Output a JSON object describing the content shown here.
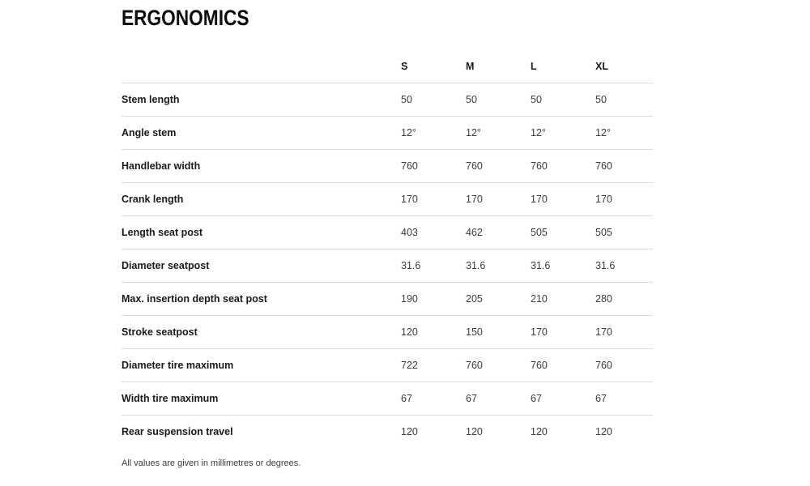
{
  "page": {
    "title": "ERGONOMICS",
    "footnote": "All values are given in millimetres or degrees."
  },
  "table": {
    "columns": [
      "S",
      "M",
      "L",
      "XL"
    ],
    "rows": [
      {
        "label": "Stem length",
        "values": [
          "50",
          "50",
          "50",
          "50"
        ]
      },
      {
        "label": "Angle stem",
        "values": [
          "12°",
          "12°",
          "12°",
          "12°"
        ]
      },
      {
        "label": "Handlebar width",
        "values": [
          "760",
          "760",
          "760",
          "760"
        ]
      },
      {
        "label": "Crank length",
        "values": [
          "170",
          "170",
          "170",
          "170"
        ]
      },
      {
        "label": "Length seat post",
        "values": [
          "403",
          "462",
          "505",
          "505"
        ]
      },
      {
        "label": "Diameter seatpost",
        "values": [
          "31.6",
          "31.6",
          "31.6",
          "31.6"
        ]
      },
      {
        "label": "Max. insertion depth seat post",
        "values": [
          "190",
          "205",
          "210",
          "280"
        ]
      },
      {
        "label": "Stroke seatpost",
        "values": [
          "120",
          "150",
          "170",
          "170"
        ]
      },
      {
        "label": "Diameter tire maximum",
        "values": [
          "722",
          "760",
          "760",
          "760"
        ]
      },
      {
        "label": "Width tire maximum",
        "values": [
          "67",
          "67",
          "67",
          "67"
        ]
      },
      {
        "label": "Rear suspension travel",
        "values": [
          "120",
          "120",
          "120",
          "120"
        ]
      }
    ]
  },
  "chart_data": {
    "type": "table",
    "title": "ERGONOMICS",
    "columns": [
      "S",
      "M",
      "L",
      "XL"
    ],
    "rows": [
      {
        "label": "Stem length",
        "values": [
          50,
          50,
          50,
          50
        ]
      },
      {
        "label": "Angle stem",
        "values": [
          "12°",
          "12°",
          "12°",
          "12°"
        ]
      },
      {
        "label": "Handlebar width",
        "values": [
          760,
          760,
          760,
          760
        ]
      },
      {
        "label": "Crank length",
        "values": [
          170,
          170,
          170,
          170
        ]
      },
      {
        "label": "Length seat post",
        "values": [
          403,
          462,
          505,
          505
        ]
      },
      {
        "label": "Diameter seatpost",
        "values": [
          31.6,
          31.6,
          31.6,
          31.6
        ]
      },
      {
        "label": "Max. insertion depth seat post",
        "values": [
          190,
          205,
          210,
          280
        ]
      },
      {
        "label": "Stroke seatpost",
        "values": [
          120,
          150,
          170,
          170
        ]
      },
      {
        "label": "Diameter tire maximum",
        "values": [
          722,
          760,
          760,
          760
        ]
      },
      {
        "label": "Width tire maximum",
        "values": [
          67,
          67,
          67,
          67
        ]
      },
      {
        "label": "Rear suspension travel",
        "values": [
          120,
          120,
          120,
          120
        ]
      }
    ],
    "footnote": "All values are given in millimetres or degrees."
  },
  "colors": {
    "text_primary": "#1a1a1a",
    "text_secondary": "#3c3c3c",
    "divider": "#dcdcdc",
    "background": "#ffffff"
  }
}
